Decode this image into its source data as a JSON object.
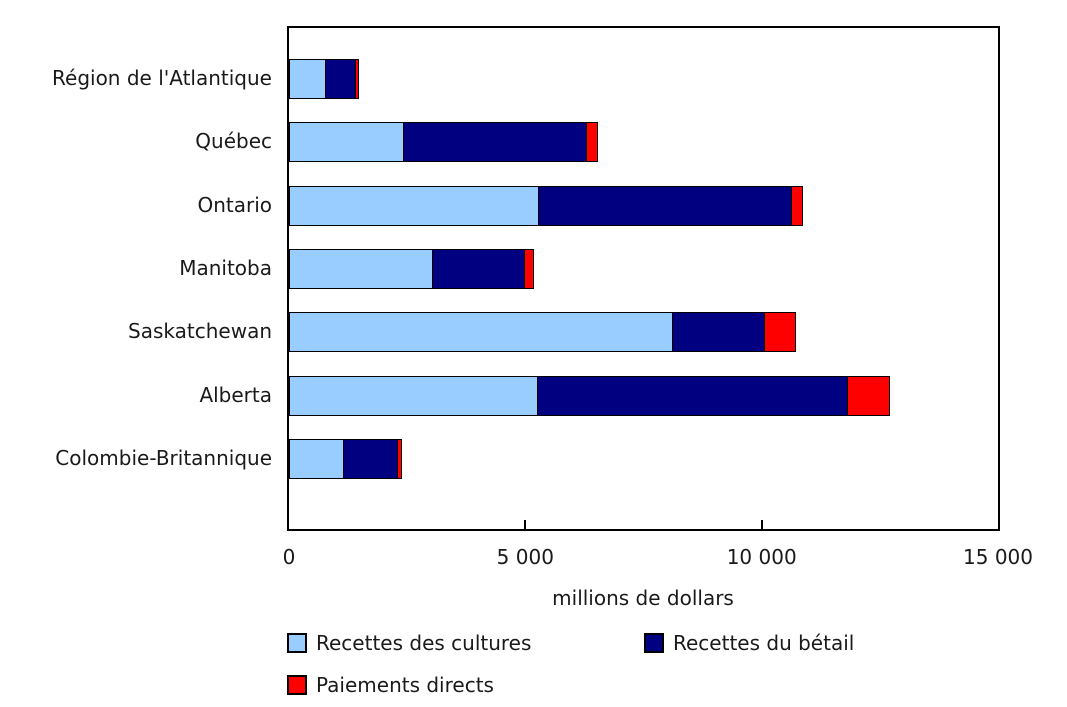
{
  "chart_data": {
    "type": "bar",
    "orientation": "horizontal",
    "stacked": true,
    "title": "",
    "xlabel": "millions de dollars",
    "ylabel": "",
    "xlim": [
      0,
      15000
    ],
    "grid": false,
    "legend_position": "bottom",
    "categories": [
      "Région de l'Atlantique",
      "Québec",
      "Ontario",
      "Manitoba",
      "Saskatchewan",
      "Alberta",
      "Colombie-Britannique"
    ],
    "series": [
      {
        "name": "Recettes des cultures",
        "color": "#99CCFF",
        "values": [
          730,
          2400,
          5240,
          3000,
          8080,
          5230,
          1130
        ]
      },
      {
        "name": "Recettes du bétail",
        "color": "#000080",
        "values": [
          640,
          3860,
          5350,
          1950,
          1960,
          6560,
          1130
        ]
      },
      {
        "name": "Paiements directs",
        "color": "#FF0000",
        "values": [
          60,
          230,
          250,
          200,
          650,
          890,
          80
        ]
      }
    ],
    "x_ticks": [
      {
        "value": 0,
        "label": "0"
      },
      {
        "value": 5000,
        "label": "5 000"
      },
      {
        "value": 10000,
        "label": "10 000"
      },
      {
        "value": 15000,
        "label": "15 000"
      }
    ]
  }
}
